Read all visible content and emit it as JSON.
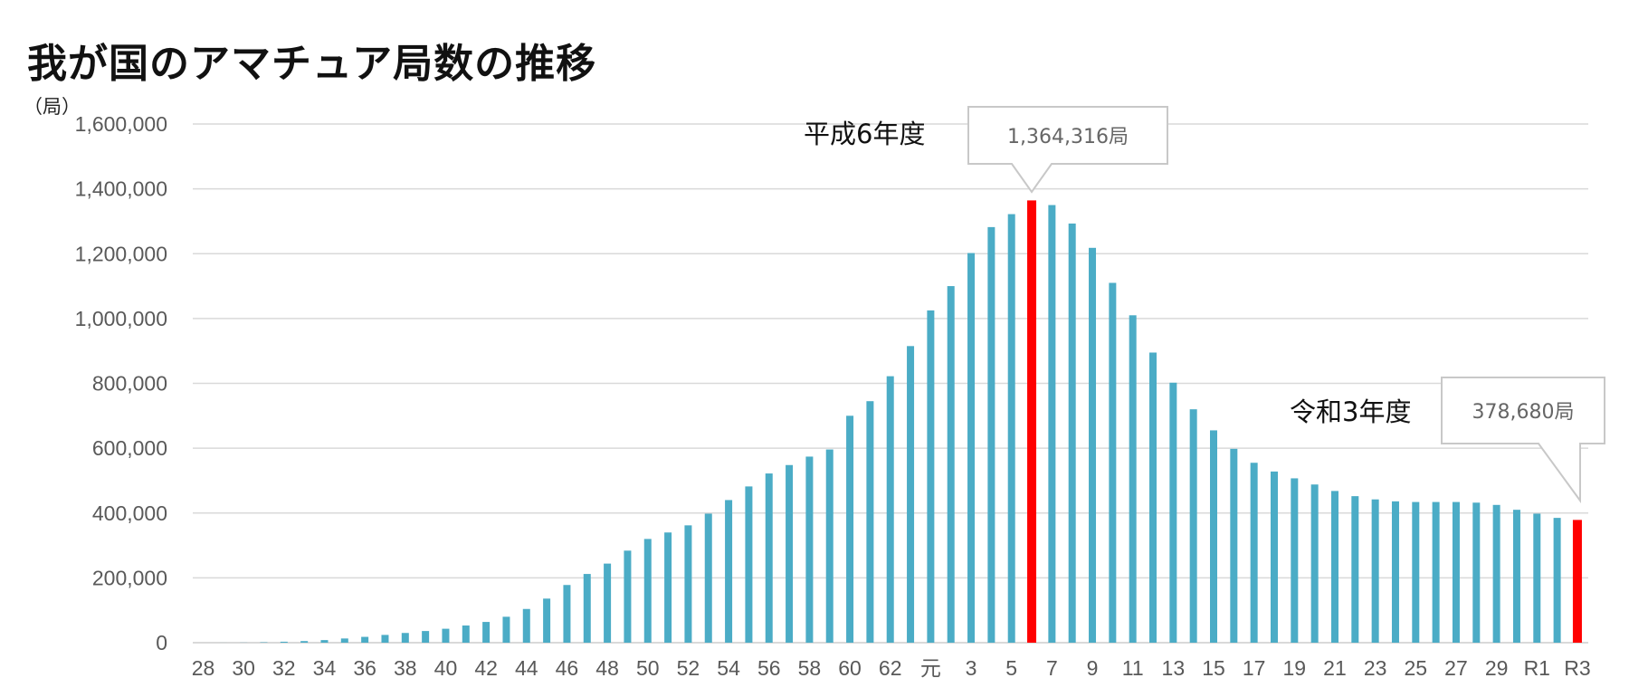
{
  "chart_data": {
    "type": "bar",
    "title": "我が国のアマチュア局数の推移",
    "y_unit_label": "（局）",
    "xlabel": "",
    "ylabel": "",
    "ylim": [
      0,
      1600000
    ],
    "yticks": [
      "0",
      "200,000",
      "400,000",
      "600,000",
      "800,000",
      "1,000,000",
      "1,200,000",
      "1,400,000",
      "1,600,000"
    ],
    "ytick_values": [
      0,
      200000,
      400000,
      600000,
      800000,
      1000000,
      1200000,
      1400000,
      1600000
    ],
    "grid": true,
    "categories": [
      "28",
      "29",
      "30",
      "31",
      "32",
      "33",
      "34",
      "35",
      "36",
      "37",
      "38",
      "39",
      "40",
      "41",
      "42",
      "43",
      "44",
      "45",
      "46",
      "47",
      "48",
      "49",
      "50",
      "51",
      "52",
      "53",
      "54",
      "55",
      "56",
      "57",
      "58",
      "59",
      "60",
      "61",
      "62",
      "63",
      "元",
      "2",
      "3",
      "4",
      "5",
      "6",
      "7",
      "8",
      "9",
      "10",
      "11",
      "12",
      "13",
      "14",
      "15",
      "16",
      "17",
      "18",
      "19",
      "20",
      "21",
      "22",
      "23",
      "24",
      "25",
      "26",
      "27",
      "28",
      "29",
      "30",
      "R1",
      "R2",
      "R3"
    ],
    "x_tick_labels_shown": [
      "28",
      "30",
      "32",
      "34",
      "36",
      "38",
      "40",
      "42",
      "44",
      "46",
      "48",
      "50",
      "52",
      "54",
      "56",
      "58",
      "60",
      "62",
      "元",
      "3",
      "5",
      "7",
      "9",
      "11",
      "13",
      "15",
      "17",
      "19",
      "21",
      "23",
      "25",
      "27",
      "29",
      "R1",
      "R3"
    ],
    "values": [
      0,
      100,
      300,
      1200,
      3000,
      5000,
      8000,
      13000,
      18000,
      24000,
      30000,
      36000,
      43000,
      53000,
      64000,
      80000,
      104000,
      136000,
      178000,
      212000,
      244000,
      284000,
      320000,
      340000,
      362000,
      398000,
      440000,
      482000,
      522000,
      548000,
      574000,
      596000,
      700000,
      745000,
      822000,
      915000,
      1025000,
      1100000,
      1202000,
      1282000,
      1322000,
      1364316,
      1350000,
      1293000,
      1218000,
      1110000,
      1010000,
      895000,
      802000,
      720000,
      655000,
      598000,
      555000,
      528000,
      507000,
      488000,
      468000,
      452000,
      442000,
      436000,
      434000,
      434000,
      434000,
      432000,
      425000,
      410000,
      398000,
      385000,
      378680
    ],
    "colors": {
      "bar": "#4bacc6",
      "highlight": "#ff0000",
      "grid": "#d9d9d9",
      "tick_text": "#595959"
    },
    "highlights": [
      {
        "category": "6",
        "label": "平成6年度",
        "value_label": "1,364,316局"
      },
      {
        "category": "R3",
        "label": "令和3年度",
        "value_label": "378,680局"
      }
    ]
  }
}
